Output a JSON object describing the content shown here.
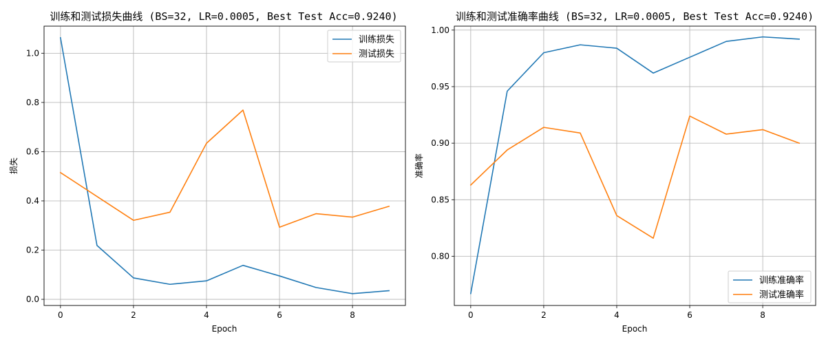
{
  "chart_data": [
    {
      "type": "line",
      "title": "训练和测试损失曲线 (BS=32, LR=0.0005, Best Test Acc=0.9240)",
      "xlabel": "Epoch",
      "ylabel": "损失",
      "x": [
        0,
        1,
        2,
        3,
        4,
        5,
        6,
        7,
        8,
        9
      ],
      "xticks": [
        0,
        2,
        4,
        6,
        8
      ],
      "yticks": [
        0.0,
        0.2,
        0.4,
        0.6,
        0.8,
        1.0
      ],
      "ytick_decimals": 1,
      "xlim": [
        -0.45,
        9.45
      ],
      "ylim": [
        -0.025,
        1.11
      ],
      "grid": true,
      "legend_position": "upper-right",
      "series": [
        {
          "name": "训练损失",
          "color": "#1f77b4",
          "values": [
            1.063,
            0.219,
            0.087,
            0.061,
            0.075,
            0.138,
            0.095,
            0.048,
            0.023,
            0.035
          ]
        },
        {
          "name": "测试损失",
          "color": "#ff7f0e",
          "values": [
            0.515,
            0.418,
            0.321,
            0.354,
            0.634,
            0.769,
            0.293,
            0.348,
            0.334,
            0.378
          ]
        }
      ]
    },
    {
      "type": "line",
      "title": "训练和测试准确率曲线 (BS=32, LR=0.0005, Best Test Acc=0.9240)",
      "xlabel": "Epoch",
      "ylabel": "准确率",
      "x": [
        0,
        1,
        2,
        3,
        4,
        5,
        6,
        7,
        8,
        9
      ],
      "xticks": [
        0,
        2,
        4,
        6,
        8
      ],
      "yticks": [
        0.8,
        0.85,
        0.9,
        0.95,
        1.0
      ],
      "ytick_decimals": 2,
      "xlim": [
        -0.45,
        9.45
      ],
      "ylim": [
        0.7565,
        1.0035
      ],
      "grid": true,
      "legend_position": "lower-right",
      "series": [
        {
          "name": "训练准确率",
          "color": "#1f77b4",
          "values": [
            0.767,
            0.946,
            0.98,
            0.987,
            0.984,
            0.962,
            0.976,
            0.99,
            0.994,
            0.992
          ]
        },
        {
          "name": "测试准确率",
          "color": "#ff7f0e",
          "values": [
            0.863,
            0.894,
            0.914,
            0.909,
            0.836,
            0.816,
            0.924,
            0.908,
            0.912,
            0.9
          ]
        }
      ]
    }
  ]
}
